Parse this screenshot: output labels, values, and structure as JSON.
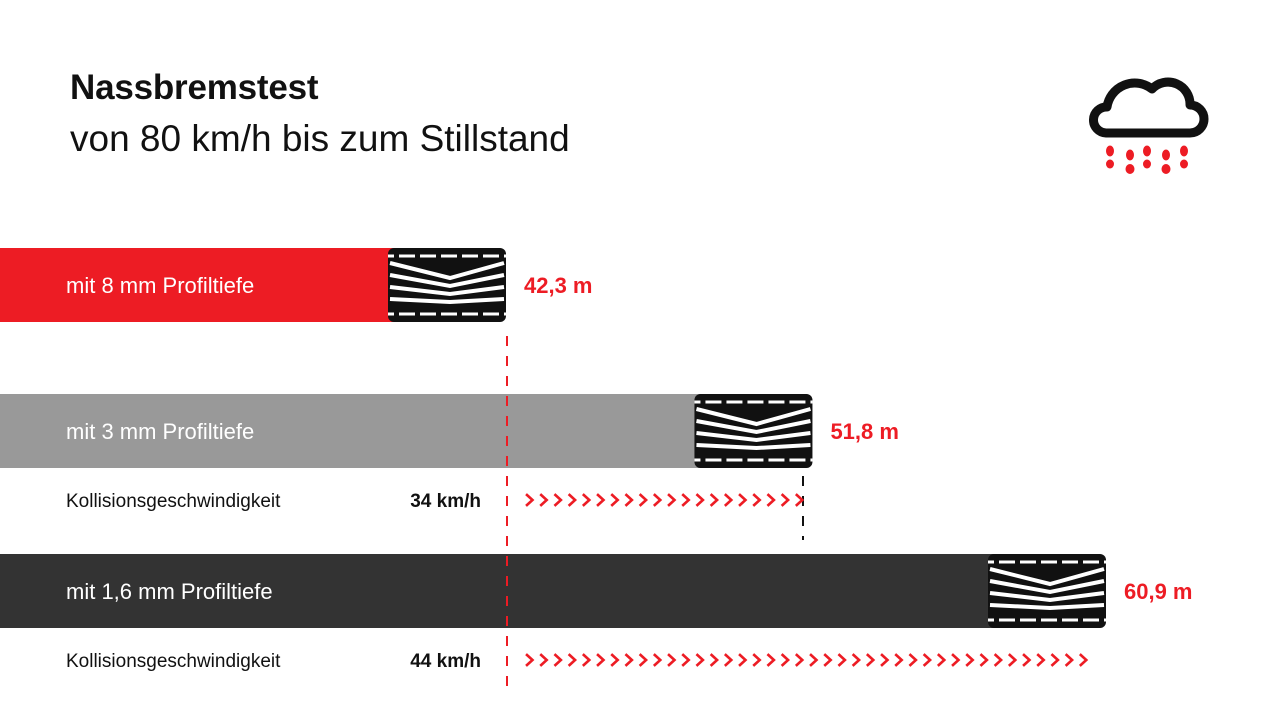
{
  "header": {
    "title": "Nassbremstest",
    "subtitle": "von 80 km/h bis zum Stillstand"
  },
  "icons": {
    "weather": "rain-cloud-icon",
    "tire": "tire-tread-icon",
    "arrows": "chevron-right-icon"
  },
  "colors": {
    "accent_red": "#ED1C24",
    "bar_8mm": "#ED1C24",
    "bar_3mm": "#999999",
    "bar_16mm": "#333333",
    "text_dark": "#111111"
  },
  "chart_data": {
    "type": "bar",
    "orientation": "horizontal",
    "title": "Nassbremstest",
    "subtitle": "von 80 km/h bis zum Stillstand",
    "unit": "m",
    "categories": [
      "mit 8 mm Profiltiefe",
      "mit 3 mm Profiltiefe",
      "mit 1,6 mm Profiltiefe"
    ],
    "values": [
      42.3,
      51.8,
      60.9
    ],
    "value_labels": [
      "42,3 m",
      "51,8 m",
      "60,9 m"
    ],
    "collision": [
      null,
      {
        "label": "Kollisionsgeschwindigkeit",
        "speed_label": "34 km/h",
        "speed": 34
      },
      {
        "label": "Kollisionsgeschwindigkeit",
        "speed_label": "44 km/h",
        "speed": 44
      }
    ],
    "reference_line": {
      "value": 42.3,
      "style": "dashed"
    },
    "grid": false,
    "legend": "none"
  }
}
